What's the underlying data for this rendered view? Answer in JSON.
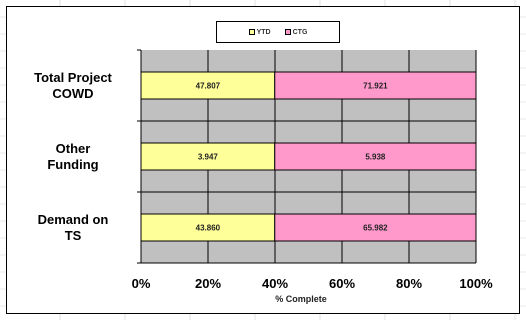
{
  "chart_data": {
    "type": "bar",
    "orientation": "horizontal",
    "stacked": "percent",
    "categories": [
      "Total Project COWD",
      "Other Funding",
      "Demand on TS"
    ],
    "category_lines": [
      [
        "Total Project",
        "COWD"
      ],
      [
        "Other",
        "Funding"
      ],
      [
        "Demand on",
        "TS"
      ]
    ],
    "series": [
      {
        "name": "YTD",
        "values": [
          47.807,
          3.947,
          43.86
        ],
        "labels": [
          "47.807",
          "3.947",
          "43.860"
        ],
        "color": "#ffff99"
      },
      {
        "name": "CTG",
        "values": [
          71.921,
          5.938,
          65.982
        ],
        "labels": [
          "71.921",
          "5.938",
          "65.982"
        ],
        "color": "#ff99cc"
      }
    ],
    "xlabel": "% Complete",
    "ylabel": "",
    "title": "",
    "xlim": [
      0,
      100
    ],
    "x_ticks": [
      "0%",
      "20%",
      "40%",
      "60%",
      "80%",
      "100%"
    ],
    "grid": true,
    "plot_background": "#c0c0c0",
    "legend_position": "top-center"
  }
}
